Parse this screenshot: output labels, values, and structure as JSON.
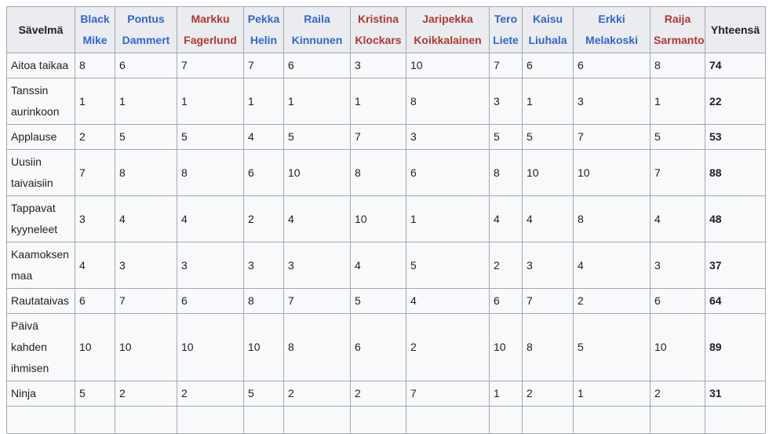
{
  "table": {
    "style": {
      "border_color": "#a2a9b1",
      "header_bg": "#eaecf0",
      "cell_bg": "#f8f9fa",
      "text_color": "#202122",
      "link_blue": "#3366cc",
      "link_red": "#b13830"
    },
    "headers": {
      "song_column": "Sävelmä",
      "total_column": "Yhteensä"
    },
    "judges": [
      {
        "name": "Black Mike",
        "link_color": "blue"
      },
      {
        "name": "Pontus Dammert",
        "link_color": "blue"
      },
      {
        "name": "Markku Fagerlund",
        "link_color": "red"
      },
      {
        "name": "Pekka Helin",
        "link_color": "blue"
      },
      {
        "name": "Raila Kinnunen",
        "link_color": "blue"
      },
      {
        "name": "Kristina Klockars",
        "link_color": "red"
      },
      {
        "name": "Jaripekka Koikkalainen",
        "link_color": "red"
      },
      {
        "name": "Tero Liete",
        "link_color": "blue"
      },
      {
        "name": "Kaisu Liuhala",
        "link_color": "blue"
      },
      {
        "name": "Erkki Melakoski",
        "link_color": "blue"
      },
      {
        "name": "Raija Sarmanto",
        "link_color": "red"
      }
    ],
    "rows": [
      {
        "song": "Aitoa taikaa",
        "scores": [
          8,
          6,
          7,
          7,
          6,
          3,
          10,
          7,
          6,
          6,
          8
        ],
        "total": 74
      },
      {
        "song": "Tanssin aurinkoon",
        "scores": [
          1,
          1,
          1,
          1,
          1,
          1,
          8,
          3,
          1,
          3,
          1
        ],
        "total": 22
      },
      {
        "song": "Applause",
        "scores": [
          2,
          5,
          5,
          4,
          5,
          7,
          3,
          5,
          5,
          7,
          5
        ],
        "total": 53
      },
      {
        "song": "Uusiin taivaisiin",
        "scores": [
          7,
          8,
          8,
          6,
          10,
          8,
          6,
          8,
          10,
          10,
          7
        ],
        "total": 88
      },
      {
        "song": "Tappavat kyyneleet",
        "scores": [
          3,
          4,
          4,
          2,
          4,
          10,
          1,
          4,
          4,
          8,
          4
        ],
        "total": 48
      },
      {
        "song": "Kaamoksen maa",
        "scores": [
          4,
          3,
          3,
          3,
          3,
          4,
          5,
          2,
          3,
          4,
          3
        ],
        "total": 37
      },
      {
        "song": "Rautataivas",
        "scores": [
          6,
          7,
          6,
          8,
          7,
          5,
          4,
          6,
          7,
          2,
          6
        ],
        "total": 64
      },
      {
        "song": "Päivä kahden ihmisen",
        "scores": [
          10,
          10,
          10,
          10,
          8,
          6,
          2,
          10,
          8,
          5,
          10
        ],
        "total": 89
      },
      {
        "song": "Ninja",
        "scores": [
          5,
          2,
          2,
          5,
          2,
          2,
          7,
          1,
          2,
          1,
          2
        ],
        "total": 31
      }
    ],
    "clipped_partial_row": true
  },
  "chart_data": {
    "type": "table",
    "title": "",
    "columns": [
      "Sävelmä",
      "Black Mike",
      "Pontus Dammert",
      "Markku Fagerlund",
      "Pekka Helin",
      "Raila Kinnunen",
      "Kristina Klockars",
      "Jaripekka Koikkalainen",
      "Tero Liete",
      "Kaisu Liuhala",
      "Erkki Melakoski",
      "Raija Sarmanto",
      "Yhteensä"
    ],
    "rows": [
      [
        "Aitoa taikaa",
        8,
        6,
        7,
        7,
        6,
        3,
        10,
        7,
        6,
        6,
        8,
        74
      ],
      [
        "Tanssin aurinkoon",
        1,
        1,
        1,
        1,
        1,
        1,
        8,
        3,
        1,
        3,
        1,
        22
      ],
      [
        "Applause",
        2,
        5,
        5,
        4,
        5,
        7,
        3,
        5,
        5,
        7,
        5,
        53
      ],
      [
        "Uusiin taivaisiin",
        7,
        8,
        8,
        6,
        10,
        8,
        6,
        8,
        10,
        10,
        7,
        88
      ],
      [
        "Tappavat kyyneleet",
        3,
        4,
        4,
        2,
        4,
        10,
        1,
        4,
        4,
        8,
        4,
        48
      ],
      [
        "Kaamoksen maa",
        4,
        3,
        3,
        3,
        3,
        4,
        5,
        2,
        3,
        4,
        3,
        37
      ],
      [
        "Rautataivas",
        6,
        7,
        6,
        8,
        7,
        5,
        4,
        6,
        7,
        2,
        6,
        64
      ],
      [
        "Päivä kahden ihmisen",
        10,
        10,
        10,
        10,
        8,
        6,
        2,
        10,
        8,
        5,
        10,
        89
      ],
      [
        "Ninja",
        5,
        2,
        2,
        5,
        2,
        2,
        7,
        1,
        2,
        1,
        2,
        31
      ]
    ]
  }
}
